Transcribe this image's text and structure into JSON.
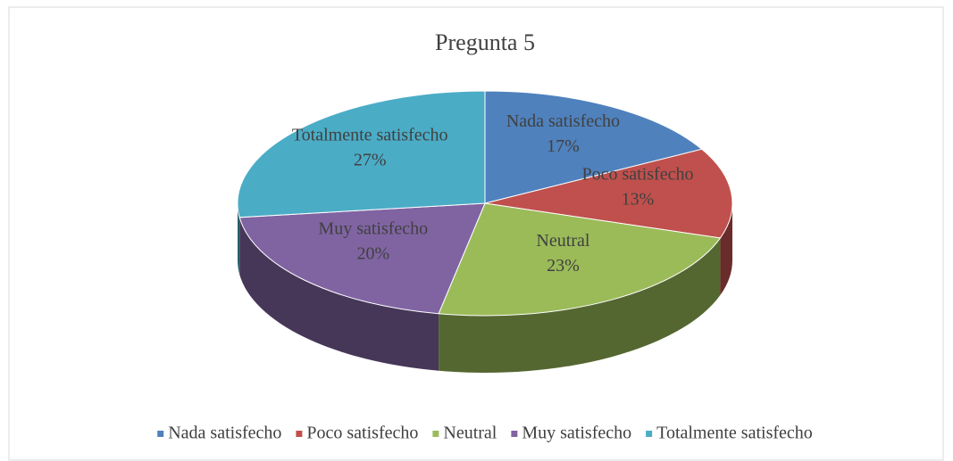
{
  "chart_data": {
    "type": "pie",
    "title": "Pregunta 5",
    "categories": [
      "Nada satisfecho",
      "Poco satisfecho",
      "Neutral",
      "Muy satisfecho",
      "Totalmente satisfecho"
    ],
    "values": [
      17,
      13,
      23,
      20,
      27
    ],
    "value_labels": [
      "17%",
      "13%",
      "23%",
      "20%",
      "27%"
    ],
    "colors": [
      "#4f81bd",
      "#c0504d",
      "#9bbb59",
      "#8064a2",
      "#4bacc6"
    ],
    "legend": "bottom"
  }
}
